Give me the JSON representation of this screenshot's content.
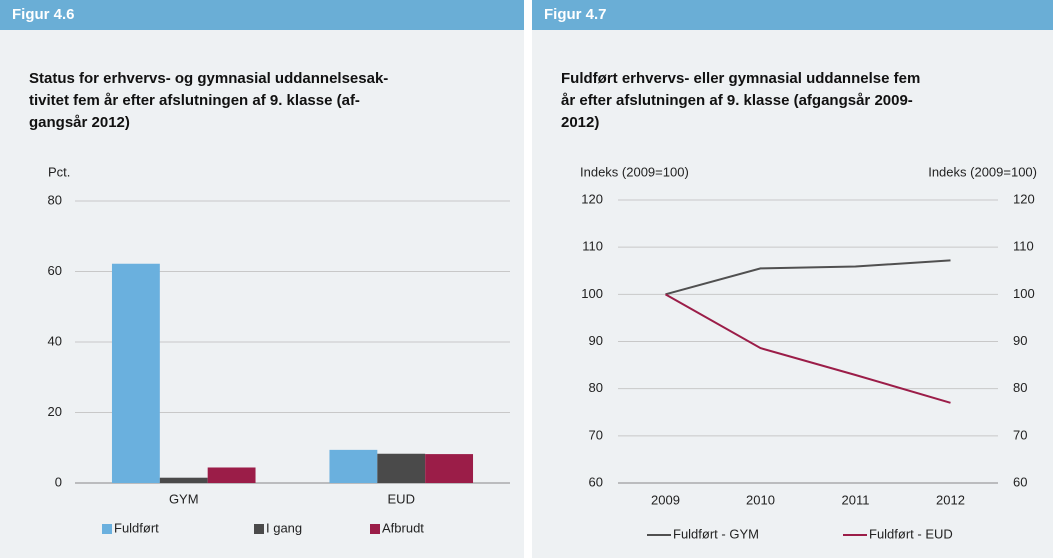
{
  "chart_data": [
    {
      "type": "bar",
      "figure_label": "Figur 4.6",
      "title": [
        "Status for erhvervs- og gymnasial uddannelsesak-",
        "tivitet fem år efter afslutningen af 9. klasse (af-",
        "gangsår 2012)"
      ],
      "ylabel": "Pct.",
      "categories": [
        "GYM",
        "EUD"
      ],
      "series": [
        {
          "name": "Fuldført",
          "color": "#6ab0de",
          "values": [
            62.2,
            9.4
          ]
        },
        {
          "name": "I gang",
          "color": "#4a4a4a",
          "values": [
            1.5,
            8.3
          ]
        },
        {
          "name": "Afbrudt",
          "color": "#9b1d48",
          "values": [
            4.4,
            8.2
          ]
        }
      ],
      "ylim": [
        0,
        80
      ],
      "yticks": [
        0,
        20,
        40,
        60,
        80
      ],
      "grid": true
    },
    {
      "type": "line",
      "figure_label": "Figur 4.7",
      "title": [
        "Fuldført erhvervs- eller gymnasial uddannelse fem",
        "år efter afslutningen af 9. klasse (afgangsår 2009-",
        "2012)"
      ],
      "ylabel": "Indeks (2009=100)",
      "y2label": "Indeks (2009=100)",
      "x": [
        2009,
        2010,
        2011,
        2012
      ],
      "xlim": [
        2008.5,
        2012.5
      ],
      "xticks": [
        2009,
        2010,
        2011,
        2012
      ],
      "series": [
        {
          "name": "Fuldført - GYM",
          "color": "#505050",
          "values": [
            100,
            105.5,
            105.9,
            107.2
          ]
        },
        {
          "name": "Fuldført - EUD",
          "color": "#9b1d48",
          "values": [
            100,
            88.6,
            82.9,
            77.0
          ]
        }
      ],
      "ylim": [
        60,
        120
      ],
      "yticks": [
        60,
        70,
        80,
        90,
        100,
        110,
        120
      ],
      "y2lim": [
        60,
        120
      ],
      "y2ticks": [
        60,
        70,
        80,
        90,
        100,
        110,
        120
      ],
      "grid": true
    }
  ]
}
